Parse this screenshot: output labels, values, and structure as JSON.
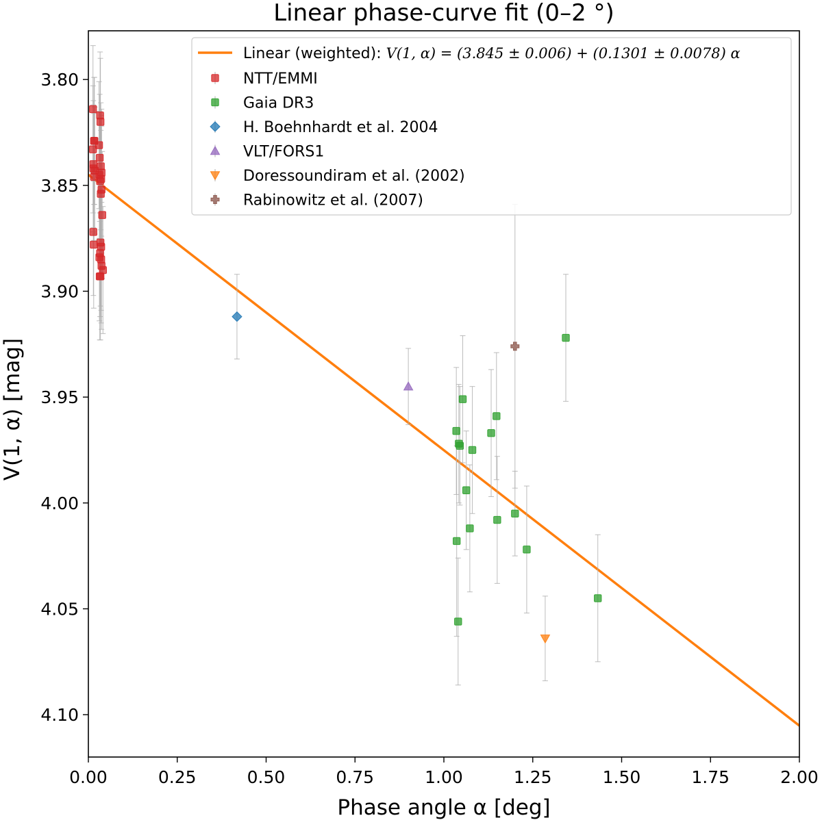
{
  "chart_data": {
    "type": "scatter",
    "title": "Linear phase-curve fit (0–2 °)",
    "xlabel": "Phase angle α [deg]",
    "ylabel": "V(1, α) [mag]",
    "xlim": [
      0.0,
      2.0
    ],
    "ylim": [
      4.12,
      3.777
    ],
    "y_inverted": true,
    "grid": false,
    "legend_position": "top-right",
    "x_ticks": [
      "0.00",
      "0.25",
      "0.50",
      "0.75",
      "1.00",
      "1.25",
      "1.50",
      "1.75",
      "2.00"
    ],
    "y_ticks": [
      "3.80",
      "3.85",
      "3.90",
      "3.95",
      "4.00",
      "4.05",
      "4.10"
    ],
    "fit": {
      "label": "Linear (weighted): V(1, α) = (3.845 ± 0.006) + (0.1301 ± 0.0078) α",
      "intercept": 3.845,
      "slope": 0.1301,
      "x_range": [
        0.0,
        2.0
      ],
      "color": "#ff7f0e"
    },
    "series": [
      {
        "name": "NTT/EMMI",
        "marker": "square",
        "color": "#d62728",
        "points": [
          {
            "x": 0.013,
            "y": 3.814,
            "err": 0.03
          },
          {
            "x": 0.013,
            "y": 3.833,
            "err": 0.03
          },
          {
            "x": 0.014,
            "y": 3.84,
            "err": 0.03
          },
          {
            "x": 0.014,
            "y": 3.842,
            "err": 0.03
          },
          {
            "x": 0.014,
            "y": 3.872,
            "err": 0.03
          },
          {
            "x": 0.016,
            "y": 3.829,
            "err": 0.03
          },
          {
            "x": 0.017,
            "y": 3.829,
            "err": 0.03
          },
          {
            "x": 0.018,
            "y": 3.843,
            "err": 0.03
          },
          {
            "x": 0.015,
            "y": 3.878,
            "err": 0.03
          },
          {
            "x": 0.016,
            "y": 3.846,
            "err": 0.03
          },
          {
            "x": 0.033,
            "y": 3.817,
            "err": 0.03
          },
          {
            "x": 0.034,
            "y": 3.82,
            "err": 0.03
          },
          {
            "x": 0.03,
            "y": 3.831,
            "err": 0.03
          },
          {
            "x": 0.032,
            "y": 3.837,
            "err": 0.03
          },
          {
            "x": 0.035,
            "y": 3.841,
            "err": 0.03
          },
          {
            "x": 0.037,
            "y": 3.844,
            "err": 0.03
          },
          {
            "x": 0.031,
            "y": 3.845,
            "err": 0.03
          },
          {
            "x": 0.036,
            "y": 3.847,
            "err": 0.03
          },
          {
            "x": 0.033,
            "y": 3.848,
            "err": 0.03
          },
          {
            "x": 0.037,
            "y": 3.852,
            "err": 0.03
          },
          {
            "x": 0.035,
            "y": 3.854,
            "err": 0.03
          },
          {
            "x": 0.039,
            "y": 3.864,
            "err": 0.03
          },
          {
            "x": 0.034,
            "y": 3.877,
            "err": 0.03
          },
          {
            "x": 0.036,
            "y": 3.879,
            "err": 0.03
          },
          {
            "x": 0.033,
            "y": 3.882,
            "err": 0.03
          },
          {
            "x": 0.031,
            "y": 3.884,
            "err": 0.03
          },
          {
            "x": 0.036,
            "y": 3.885,
            "err": 0.03
          },
          {
            "x": 0.037,
            "y": 3.888,
            "err": 0.03
          },
          {
            "x": 0.041,
            "y": 3.89,
            "err": 0.03
          },
          {
            "x": 0.032,
            "y": 3.893,
            "err": 0.03
          },
          {
            "x": 0.034,
            "y": 3.893,
            "err": 0.03
          }
        ]
      },
      {
        "name": "Gaia DR3",
        "marker": "square",
        "color": "#2ca02c",
        "points": [
          {
            "x": 1.035,
            "y": 3.966,
            "err": 0.03
          },
          {
            "x": 1.042,
            "y": 3.972,
            "err": 0.028
          },
          {
            "x": 1.045,
            "y": 3.973,
            "err": 0.028
          },
          {
            "x": 1.053,
            "y": 3.951,
            "err": 0.03
          },
          {
            "x": 1.063,
            "y": 3.994,
            "err": 0.028
          },
          {
            "x": 1.08,
            "y": 3.975,
            "err": 0.03
          },
          {
            "x": 1.073,
            "y": 4.012,
            "err": 0.03
          },
          {
            "x": 1.036,
            "y": 4.018,
            "err": 0.045
          },
          {
            "x": 1.04,
            "y": 4.056,
            "err": 0.03
          },
          {
            "x": 1.133,
            "y": 3.967,
            "err": 0.03
          },
          {
            "x": 1.148,
            "y": 3.959,
            "err": 0.03
          },
          {
            "x": 1.15,
            "y": 4.008,
            "err": 0.03
          },
          {
            "x": 1.2,
            "y": 4.005,
            "err": 0.02
          },
          {
            "x": 1.233,
            "y": 4.022,
            "err": 0.03
          },
          {
            "x": 1.343,
            "y": 3.922,
            "err": 0.03
          },
          {
            "x": 1.433,
            "y": 4.045,
            "err": 0.03
          }
        ]
      },
      {
        "name": "H. Boehnhardt et al. 2004",
        "marker": "diamond",
        "color": "#1f77b4",
        "points": [
          {
            "x": 0.418,
            "y": 3.912,
            "err": 0.02
          }
        ]
      },
      {
        "name": "VLT/FORS1",
        "marker": "triangle-up",
        "color": "#9467bd",
        "points": [
          {
            "x": 0.9,
            "y": 3.945,
            "err": 0.018
          }
        ]
      },
      {
        "name": "Doressoundiram et al. (2002)",
        "marker": "triangle-down",
        "color": "#ff7f0e",
        "points": [
          {
            "x": 1.285,
            "y": 4.064,
            "err": 0.02
          }
        ]
      },
      {
        "name": "Rabinowitz et al. (2007)",
        "marker": "plus",
        "color": "#8c564b",
        "points": [
          {
            "x": 1.2,
            "y": 3.926,
            "err": 0.067
          }
        ]
      }
    ]
  },
  "legend": {
    "fit_prefix": "Linear (weighted): ",
    "fit_formula": "V(1, α) = (3.845 ± 0.006) + (0.1301 ± 0.0078) α"
  }
}
